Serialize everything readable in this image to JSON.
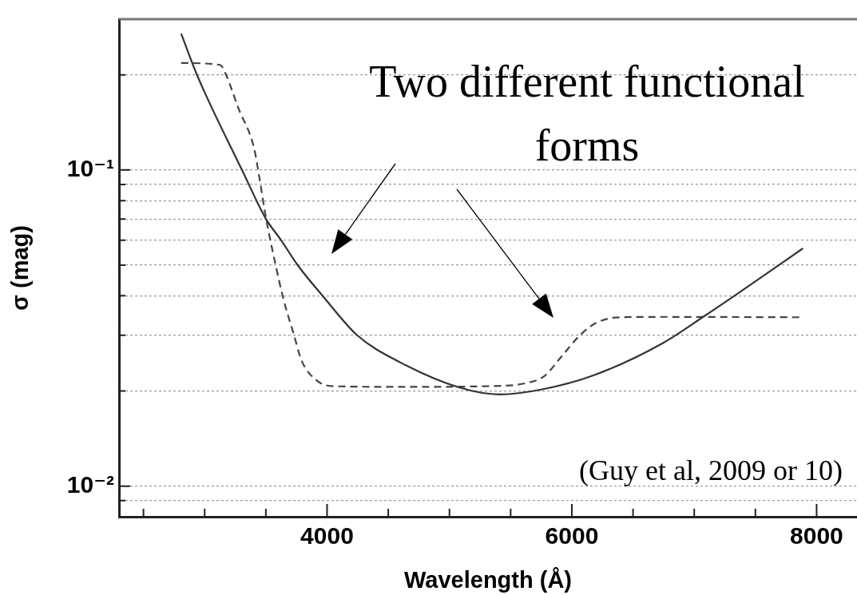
{
  "chart_data": {
    "type": "line",
    "xlabel": "Wavelength (Å)",
    "ylabel": "σ (mag)",
    "annotations": [
      "Two different functional forms",
      "(Guy et al, 2009 or 10)"
    ],
    "series": [
      {
        "color": "#333333",
        "line_style": "solid",
        "x": [
          2808,
          2937,
          3305,
          3501,
          3624,
          3760,
          3968,
          4246,
          4609,
          5082,
          5413,
          5750,
          6190,
          6748,
          7078,
          7357,
          7888
        ],
        "values": [
          0.27,
          0.2,
          0.1,
          0.07,
          0.06,
          0.05,
          0.0398,
          0.03,
          0.0245,
          0.0205,
          0.0195,
          0.0202,
          0.0225,
          0.0284,
          0.0344,
          0.0407,
          0.0565
        ]
      },
      {
        "color": "#444444",
        "line_style": "dashed",
        "x": [
          2808,
          3125,
          3175,
          3272,
          3404,
          3449,
          3501,
          3579,
          3644,
          3728,
          3793,
          3922,
          4052,
          4600,
          5300,
          5633,
          5776,
          5912,
          6055,
          6190,
          6385,
          6748,
          7876
        ],
        "values": [
          0.218,
          0.215,
          0.2,
          0.158,
          0.117,
          0.0935,
          0.0705,
          0.0502,
          0.039,
          0.0302,
          0.0249,
          0.0215,
          0.0207,
          0.0206,
          0.0207,
          0.0212,
          0.0223,
          0.0256,
          0.0297,
          0.0327,
          0.0342,
          0.0343,
          0.0342
        ]
      }
    ],
    "log": "y",
    "grid": "y",
    "marker": "none",
    "xlim": [
      2300,
      8330
    ],
    "xticks": [
      {
        "value": 2500,
        "label": null
      },
      {
        "value": 3000,
        "label": null
      },
      {
        "value": 3500,
        "label": null
      },
      4000,
      {
        "value": 4500,
        "label": null
      },
      {
        "value": 5000,
        "label": null
      },
      {
        "value": 5500,
        "label": null
      },
      6000,
      {
        "value": 6500,
        "label": null
      },
      {
        "value": 7000,
        "label": null
      },
      {
        "value": 7500,
        "label": null
      },
      8000
    ],
    "ylim": [
      0.008,
      0.3
    ],
    "yticks": [
      {
        "value": 0.009,
        "label": null
      },
      {
        "value": 0.01,
        "label": "10⁻²"
      },
      {
        "value": 0.02,
        "label": null
      },
      {
        "value": 0.03,
        "label": null
      },
      {
        "value": 0.04,
        "label": null
      },
      {
        "value": 0.05,
        "label": null
      },
      {
        "value": 0.06,
        "label": null
      },
      {
        "value": 0.07,
        "label": null
      },
      {
        "value": 0.08,
        "label": null
      },
      {
        "value": 0.09,
        "label": null
      },
      {
        "value": 0.1,
        "label": "10⁻¹"
      },
      {
        "value": 0.2,
        "label": null
      }
    ]
  }
}
